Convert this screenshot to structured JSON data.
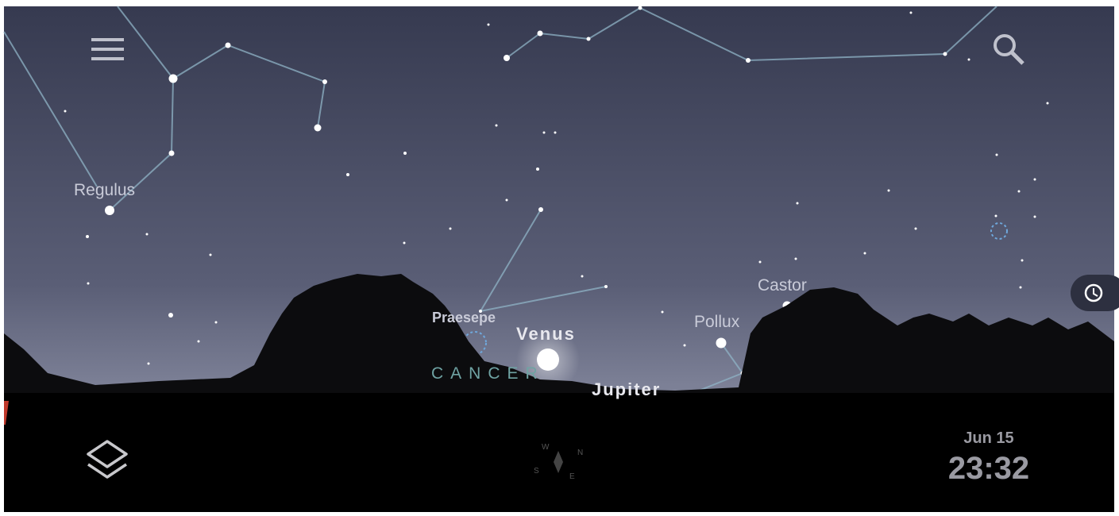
{
  "sky": {
    "stars": {
      "regulus": "Regulus",
      "praesepe": "Praesepe",
      "venus": "Venus",
      "jupiter": "Jupiter",
      "pollux": "Pollux",
      "castor": "Castor"
    },
    "constellation": "CANCER"
  },
  "compass": {
    "west": "W",
    "north": "N",
    "south": "S",
    "east": "E"
  },
  "datetime": {
    "date": "Jun 15",
    "time": "23:32"
  }
}
